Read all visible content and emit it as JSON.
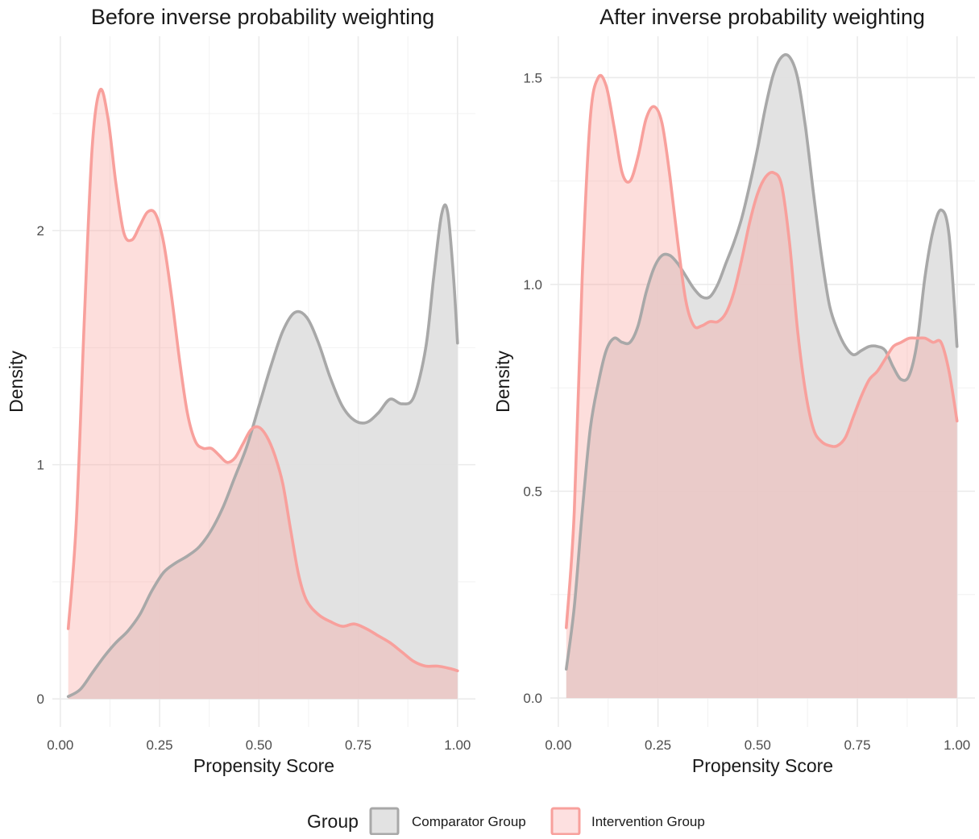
{
  "colors": {
    "comparator_line": "#a8a8a8",
    "comparator_fill": "#e0e0e0",
    "intervention_line": "#f8a09c",
    "intervention_fill": "#f8a09c"
  },
  "legend": {
    "title": "Group",
    "items": [
      {
        "label": "Comparator Group",
        "line": "#a8a8a8",
        "fill": "#e2e2e2"
      },
      {
        "label": "Intervention Group",
        "line": "#f8a09c",
        "fill": "#fde0e0"
      }
    ]
  },
  "chart_data": [
    {
      "type": "area",
      "title": "Before inverse probability weighting",
      "xlabel": "Propensity Score",
      "ylabel": "Density",
      "xlim": [
        -0.02,
        1.045
      ],
      "ylim": [
        -0.12,
        2.83
      ],
      "xticks": [
        0.0,
        0.25,
        0.5,
        0.75,
        1.0
      ],
      "xtick_labels": [
        "0.00",
        "0.25",
        "0.50",
        "0.75",
        "1.00"
      ],
      "yticks": [
        0,
        1,
        2
      ],
      "ytick_labels": [
        "0",
        "1",
        "2"
      ],
      "grid": true,
      "series": [
        {
          "name": "Comparator Group",
          "points": [
            [
              0.02,
              0.01
            ],
            [
              0.05,
              0.04
            ],
            [
              0.08,
              0.11
            ],
            [
              0.11,
              0.18
            ],
            [
              0.14,
              0.24
            ],
            [
              0.17,
              0.29
            ],
            [
              0.2,
              0.36
            ],
            [
              0.23,
              0.46
            ],
            [
              0.26,
              0.54
            ],
            [
              0.29,
              0.58
            ],
            [
              0.32,
              0.61
            ],
            [
              0.35,
              0.65
            ],
            [
              0.38,
              0.72
            ],
            [
              0.41,
              0.82
            ],
            [
              0.44,
              0.95
            ],
            [
              0.47,
              1.08
            ],
            [
              0.5,
              1.25
            ],
            [
              0.53,
              1.42
            ],
            [
              0.56,
              1.57
            ],
            [
              0.59,
              1.65
            ],
            [
              0.62,
              1.63
            ],
            [
              0.65,
              1.52
            ],
            [
              0.68,
              1.37
            ],
            [
              0.71,
              1.25
            ],
            [
              0.74,
              1.19
            ],
            [
              0.77,
              1.18
            ],
            [
              0.8,
              1.22
            ],
            [
              0.83,
              1.28
            ],
            [
              0.86,
              1.26
            ],
            [
              0.89,
              1.29
            ],
            [
              0.92,
              1.5
            ],
            [
              0.94,
              1.8
            ],
            [
              0.96,
              2.07
            ],
            [
              0.975,
              2.08
            ],
            [
              0.99,
              1.8
            ],
            [
              1.0,
              1.52
            ]
          ]
        },
        {
          "name": "Intervention Group",
          "points": [
            [
              0.02,
              0.3
            ],
            [
              0.04,
              0.75
            ],
            [
              0.06,
              1.6
            ],
            [
              0.08,
              2.35
            ],
            [
              0.1,
              2.6
            ],
            [
              0.12,
              2.48
            ],
            [
              0.14,
              2.2
            ],
            [
              0.16,
              1.99
            ],
            [
              0.18,
              1.96
            ],
            [
              0.2,
              2.02
            ],
            [
              0.22,
              2.08
            ],
            [
              0.24,
              2.07
            ],
            [
              0.26,
              1.95
            ],
            [
              0.28,
              1.72
            ],
            [
              0.3,
              1.45
            ],
            [
              0.32,
              1.22
            ],
            [
              0.34,
              1.1
            ],
            [
              0.36,
              1.07
            ],
            [
              0.38,
              1.07
            ],
            [
              0.4,
              1.04
            ],
            [
              0.42,
              1.01
            ],
            [
              0.44,
              1.03
            ],
            [
              0.46,
              1.09
            ],
            [
              0.48,
              1.15
            ],
            [
              0.5,
              1.16
            ],
            [
              0.52,
              1.12
            ],
            [
              0.54,
              1.04
            ],
            [
              0.56,
              0.92
            ],
            [
              0.58,
              0.72
            ],
            [
              0.6,
              0.53
            ],
            [
              0.62,
              0.42
            ],
            [
              0.65,
              0.36
            ],
            [
              0.68,
              0.33
            ],
            [
              0.71,
              0.31
            ],
            [
              0.74,
              0.32
            ],
            [
              0.77,
              0.3
            ],
            [
              0.8,
              0.27
            ],
            [
              0.83,
              0.24
            ],
            [
              0.86,
              0.2
            ],
            [
              0.89,
              0.16
            ],
            [
              0.92,
              0.14
            ],
            [
              0.95,
              0.14
            ],
            [
              0.98,
              0.13
            ],
            [
              1.0,
              0.12
            ]
          ]
        }
      ]
    },
    {
      "type": "area",
      "title": "After inverse probability weighting",
      "xlabel": "Propensity Score",
      "ylabel": "Density",
      "xlim": [
        -0.02,
        1.045
      ],
      "ylim": [
        -0.07,
        1.6
      ],
      "xticks": [
        0.0,
        0.25,
        0.5,
        0.75,
        1.0
      ],
      "xtick_labels": [
        "0.00",
        "0.25",
        "0.50",
        "0.75",
        "1.00"
      ],
      "yticks": [
        0.0,
        0.5,
        1.0,
        1.5
      ],
      "ytick_labels": [
        "0.0",
        "0.5",
        "1.0",
        "1.5"
      ],
      "grid": true,
      "series": [
        {
          "name": "Comparator Group",
          "points": [
            [
              0.02,
              0.07
            ],
            [
              0.04,
              0.22
            ],
            [
              0.06,
              0.45
            ],
            [
              0.08,
              0.65
            ],
            [
              0.1,
              0.76
            ],
            [
              0.12,
              0.84
            ],
            [
              0.14,
              0.87
            ],
            [
              0.16,
              0.86
            ],
            [
              0.18,
              0.86
            ],
            [
              0.2,
              0.9
            ],
            [
              0.22,
              0.98
            ],
            [
              0.24,
              1.04
            ],
            [
              0.26,
              1.07
            ],
            [
              0.28,
              1.07
            ],
            [
              0.3,
              1.05
            ],
            [
              0.32,
              1.02
            ],
            [
              0.34,
              0.99
            ],
            [
              0.36,
              0.97
            ],
            [
              0.38,
              0.97
            ],
            [
              0.4,
              1.0
            ],
            [
              0.42,
              1.05
            ],
            [
              0.44,
              1.1
            ],
            [
              0.46,
              1.16
            ],
            [
              0.48,
              1.24
            ],
            [
              0.5,
              1.33
            ],
            [
              0.52,
              1.43
            ],
            [
              0.54,
              1.51
            ],
            [
              0.56,
              1.55
            ],
            [
              0.58,
              1.55
            ],
            [
              0.6,
              1.5
            ],
            [
              0.62,
              1.38
            ],
            [
              0.64,
              1.22
            ],
            [
              0.66,
              1.07
            ],
            [
              0.68,
              0.95
            ],
            [
              0.7,
              0.89
            ],
            [
              0.72,
              0.85
            ],
            [
              0.74,
              0.83
            ],
            [
              0.76,
              0.84
            ],
            [
              0.78,
              0.85
            ],
            [
              0.8,
              0.85
            ],
            [
              0.82,
              0.84
            ],
            [
              0.84,
              0.8
            ],
            [
              0.86,
              0.77
            ],
            [
              0.88,
              0.78
            ],
            [
              0.9,
              0.86
            ],
            [
              0.92,
              1.02
            ],
            [
              0.94,
              1.13
            ],
            [
              0.96,
              1.18
            ],
            [
              0.98,
              1.12
            ],
            [
              1.0,
              0.85
            ]
          ]
        },
        {
          "name": "Intervention Group",
          "points": [
            [
              0.02,
              0.17
            ],
            [
              0.04,
              0.45
            ],
            [
              0.06,
              1.02
            ],
            [
              0.08,
              1.4
            ],
            [
              0.1,
              1.5
            ],
            [
              0.12,
              1.48
            ],
            [
              0.14,
              1.38
            ],
            [
              0.16,
              1.27
            ],
            [
              0.18,
              1.25
            ],
            [
              0.2,
              1.31
            ],
            [
              0.22,
              1.4
            ],
            [
              0.24,
              1.43
            ],
            [
              0.26,
              1.39
            ],
            [
              0.28,
              1.26
            ],
            [
              0.3,
              1.1
            ],
            [
              0.32,
              0.96
            ],
            [
              0.34,
              0.9
            ],
            [
              0.36,
              0.9
            ],
            [
              0.38,
              0.91
            ],
            [
              0.4,
              0.91
            ],
            [
              0.42,
              0.93
            ],
            [
              0.44,
              0.98
            ],
            [
              0.46,
              1.06
            ],
            [
              0.48,
              1.15
            ],
            [
              0.5,
              1.22
            ],
            [
              0.52,
              1.26
            ],
            [
              0.54,
              1.27
            ],
            [
              0.56,
              1.24
            ],
            [
              0.58,
              1.1
            ],
            [
              0.6,
              0.89
            ],
            [
              0.62,
              0.74
            ],
            [
              0.64,
              0.65
            ],
            [
              0.66,
              0.62
            ],
            [
              0.68,
              0.61
            ],
            [
              0.7,
              0.61
            ],
            [
              0.72,
              0.63
            ],
            [
              0.74,
              0.68
            ],
            [
              0.76,
              0.73
            ],
            [
              0.78,
              0.77
            ],
            [
              0.8,
              0.79
            ],
            [
              0.82,
              0.82
            ],
            [
              0.84,
              0.85
            ],
            [
              0.86,
              0.86
            ],
            [
              0.88,
              0.87
            ],
            [
              0.9,
              0.87
            ],
            [
              0.92,
              0.87
            ],
            [
              0.94,
              0.86
            ],
            [
              0.96,
              0.86
            ],
            [
              0.98,
              0.79
            ],
            [
              1.0,
              0.67
            ]
          ]
        }
      ]
    }
  ]
}
